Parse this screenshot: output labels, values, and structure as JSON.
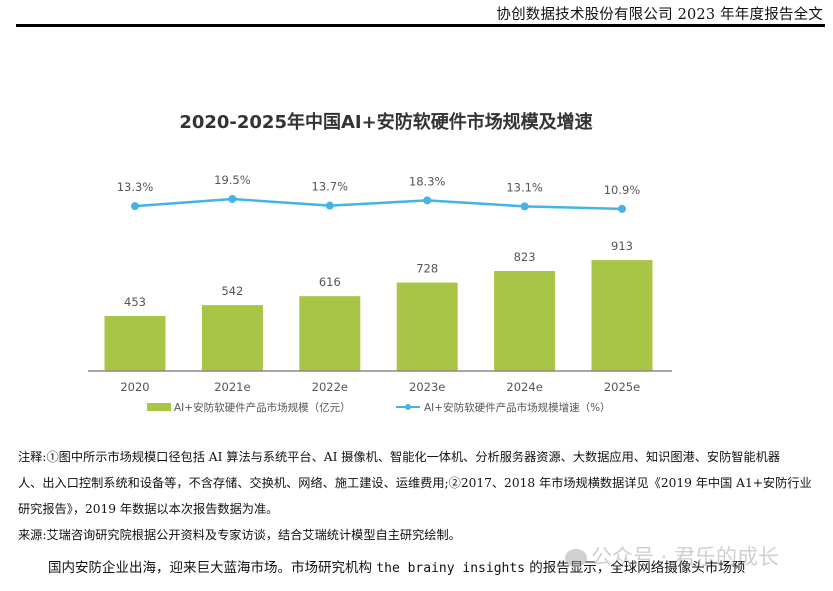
{
  "header": {
    "title": "协创数据技术股份有限公司 2023 年年度报告全文"
  },
  "chart_data": {
    "type": "bar",
    "title": "2020-2025年中国AI+安防软硬件市场规模及增速",
    "categories": [
      "2020",
      "2021e",
      "2022e",
      "2023e",
      "2024e",
      "2025e"
    ],
    "series": [
      {
        "name": "AI+安防软硬件产品市场规模（亿元）",
        "type": "bar",
        "color": "#a9c545",
        "values": [
          453,
          542,
          616,
          728,
          823,
          913
        ],
        "labels": [
          "453",
          "542",
          "616",
          "728",
          "823",
          "913"
        ]
      },
      {
        "name": "AI+安防软硬件产品市场规模增速（%）",
        "type": "line",
        "color": "#45b3e3",
        "values": [
          13.3,
          19.5,
          13.7,
          18.3,
          13.1,
          10.9
        ],
        "labels": [
          "13.3%",
          "19.5%",
          "13.7%",
          "18.3%",
          "13.1%",
          "10.9%"
        ]
      }
    ],
    "xlabel": "",
    "ylabel": "",
    "grid": false,
    "legend_position": "bottom"
  },
  "notes": {
    "line1": "注释:①图中所示市场规模口径包括 AI 算法与系统平台、AI 摄像机、智能化一体机、分析服务器资源、大数据应用、知识图港、安防智能机器",
    "line2": "人、出入口控制系统和设备等，不含存储、交换机、网络、施工建设、运维费用;②2017、2018 年市场规横数据详见《2019 年中国 A1+安防行业",
    "line3": "研究报告》，2019 年数据以本次报告数据为准。",
    "source": "来源:艾瑞咨询研究院根据公开资料及专家访谈，结合艾瑞统计模型自主研究绘制。"
  },
  "body": {
    "text_before": "国内安防企业出海，迎来巨大蓝海市场。市场研究机构 ",
    "text_latin": "the brainy insights",
    "text_after": " 的报告显示，全球网络摄像头市场预"
  },
  "watermark": {
    "text": "公众号 · 君乐的成长"
  }
}
